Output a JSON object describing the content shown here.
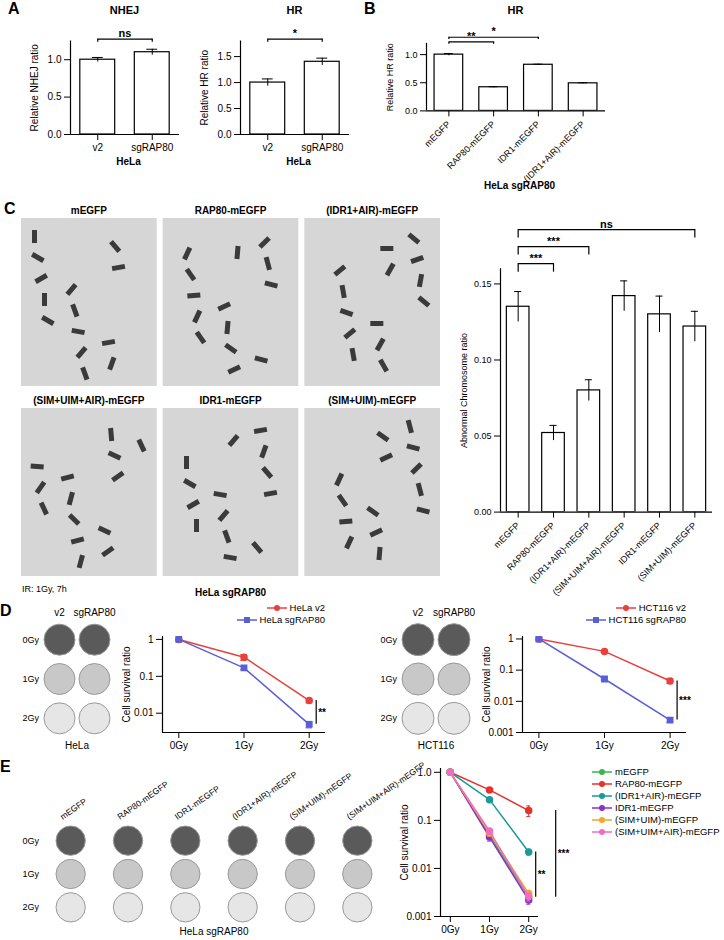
{
  "chart_data": [
    {
      "panel": "A",
      "type": "bar",
      "title": "NHEJ",
      "x_label": "HeLa",
      "y_label": "Relative NHEJ ratio",
      "categories": [
        "v2",
        "sgRAP80"
      ],
      "values": [
        1.0,
        1.1
      ],
      "errors": [
        0.03,
        0.04
      ],
      "color": "#ffffff",
      "ylim": [
        0,
        1.25
      ],
      "yticks": [
        {
          "value": 0,
          "label": "0.0"
        },
        {
          "value": 0.5,
          "label": "0.5"
        },
        {
          "value": 1,
          "label": "1.0"
        }
      ],
      "significance": [
        {
          "from": "v2",
          "to": "sgRAP80",
          "label": "ns"
        }
      ]
    },
    {
      "type": "bar",
      "title": "HR",
      "x_label": "HeLa",
      "y_label": "Relative HR ratio",
      "categories": [
        "v2",
        "sgRAP80"
      ],
      "values": [
        1.0,
        1.4
      ],
      "errors": [
        0.07,
        0.07
      ],
      "color": "#ffffff",
      "ylim": [
        0,
        1.8
      ],
      "yticks": [
        {
          "value": 0,
          "label": "0.0"
        },
        {
          "value": 0.5,
          "label": "0.5"
        },
        {
          "value": 1,
          "label": "1.0"
        },
        {
          "value": 1.5,
          "label": "1.5"
        }
      ],
      "significance": [
        {
          "from": "v2",
          "to": "sgRAP80",
          "label": "*"
        }
      ]
    },
    {
      "panel": "B",
      "type": "bar",
      "title": "HR",
      "x_label": "HeLa sgRAP80",
      "y_label": "Relative HR ratio",
      "categories": [
        "mEGFP",
        "RAP80-mEGFP",
        "IDR1-mEGFP",
        "(IDR1+AIR)-mEGFP"
      ],
      "values": [
        1.0,
        0.42,
        0.82,
        0.49
      ],
      "errors": [
        0.02,
        0.01,
        0.01,
        0.01
      ],
      "color": "#ffffff",
      "ylim": [
        0,
        1.2
      ],
      "yticks": [
        {
          "value": 0,
          "label": "0.0"
        },
        {
          "value": 0.5,
          "label": "0.5"
        },
        {
          "value": 1,
          "label": "1.0"
        }
      ],
      "significance": [
        {
          "from": "mEGFP",
          "to": "RAP80-mEGFP",
          "label": "**"
        },
        {
          "from": "mEGFP",
          "to": "IDR1-mEGFP",
          "label": "*"
        }
      ]
    },
    {
      "type": "bar",
      "y_label": "Abnormal Chromosome ratio",
      "categories": [
        "mEGFP",
        "RAP80-mEGFP",
        "(IDR1+AIR)-mEGFP",
        "(SIM+UIM+AIR)-mEGFP",
        "IDR1-mEGFP",
        "(SIM+UIM)-mEGFP"
      ],
      "values": [
        0.135,
        0.052,
        0.08,
        0.142,
        0.13,
        0.122
      ],
      "errors": [
        0.01,
        0.005,
        0.007,
        0.01,
        0.012,
        0.01
      ],
      "color": "#ffffff",
      "ylim": [
        0,
        0.16
      ],
      "yticks": [
        {
          "value": 0,
          "label": "0.00"
        },
        {
          "value": 0.05,
          "label": "0.05"
        },
        {
          "value": 0.1,
          "label": "0.10"
        },
        {
          "value": 0.15,
          "label": "0.15"
        }
      ],
      "significance": [
        {
          "from": "mEGFP",
          "to": "RAP80-mEGFP",
          "label": "***"
        },
        {
          "from": "mEGFP",
          "to": "(IDR1+AIR)-mEGFP",
          "label": "***"
        },
        {
          "from": "mEGFP",
          "to": "(SIM+UIM)-mEGFP",
          "label": "ns"
        }
      ]
    },
    {
      "type": "line",
      "y_label": "Cell survival ratio",
      "log": "y",
      "legend": "top-right",
      "categories": [
        "0Gy",
        "1Gy",
        "2Gy"
      ],
      "ylim": [
        0.003,
        1.2
      ],
      "yticks": [
        0.01,
        0.1,
        1
      ],
      "series": [
        {
          "name": "HeLa v2",
          "color": "#e8413c",
          "marker": "circle",
          "values": [
            1,
            0.33,
            0.022
          ],
          "errors": [
            0,
            0.06,
            0.003
          ]
        },
        {
          "name": "HeLa sgRAP80",
          "color": "#5a5fd6",
          "marker": "square",
          "values": [
            1,
            0.17,
            0.005
          ],
          "errors": [
            0,
            0.02,
            0.001
          ]
        }
      ],
      "significance": [
        {
          "between": [
            "HeLa v2",
            "HeLa sgRAP80"
          ],
          "label": "**"
        }
      ]
    },
    {
      "type": "line",
      "y_label": "Cell survival ratio",
      "log": "y",
      "legend": "top-right",
      "categories": [
        "0Gy",
        "1Gy",
        "2Gy"
      ],
      "ylim": [
        0.001,
        1.2
      ],
      "yticks": [
        0.001,
        0.01,
        0.1,
        1
      ],
      "series": [
        {
          "name": "HCT116 v2",
          "color": "#e8413c",
          "marker": "circle",
          "values": [
            1,
            0.4,
            0.045
          ],
          "errors": [
            0,
            0.02,
            0.008
          ]
        },
        {
          "name": "HCT116 sgRAP80",
          "color": "#5a5fd6",
          "marker": "square",
          "values": [
            1,
            0.052,
            0.0025
          ],
          "errors": [
            0,
            0.004,
            0.0004
          ]
        }
      ],
      "significance": [
        {
          "between": [
            "HCT116 v2",
            "HCT116 sgRAP80"
          ],
          "label": "***"
        }
      ]
    },
    {
      "type": "line",
      "y_label": "Cell survival ratio",
      "log": "y",
      "legend": "right",
      "categories": [
        "0Gy",
        "1Gy",
        "2Gy"
      ],
      "ylim": [
        0.001,
        1.2
      ],
      "yticks": [
        0.001,
        0.01,
        0.1,
        {
          "value": 1,
          "label": "1.0"
        }
      ],
      "series": [
        {
          "name": "mEGFP",
          "color": "#3cb44b",
          "marker": "circle",
          "values": [
            1,
            0.05,
            0.0025
          ],
          "errors": [
            0,
            0.008,
            0.0005
          ]
        },
        {
          "name": "RAP80-mEGFP",
          "color": "#e6312e",
          "marker": "circle",
          "values": [
            1,
            0.43,
            0.16
          ],
          "errors": [
            0,
            0.05,
            0.04
          ]
        },
        {
          "name": "(IDR1+AIR)-mEGFP",
          "color": "#1a9a9a",
          "marker": "circle",
          "values": [
            1,
            0.27,
            0.022
          ],
          "errors": [
            0,
            0.02,
            0.003
          ]
        },
        {
          "name": "IDR1-mEGFP",
          "color": "#8b2fc9",
          "marker": "circle",
          "values": [
            1,
            0.045,
            0.0022
          ],
          "errors": [
            0,
            0.008,
            0.0004
          ]
        },
        {
          "name": "(SIM+UIM)-mEGFP",
          "color": "#f5a623",
          "marker": "circle",
          "values": [
            1,
            0.055,
            0.003
          ],
          "errors": [
            0,
            0.008,
            0.0005
          ]
        },
        {
          "name": "(SIM+UIM+AIR)-mEGFP",
          "color": "#f06ec2",
          "marker": "circle",
          "values": [
            1,
            0.06,
            0.0026
          ],
          "errors": [
            0,
            0.008,
            0.0005
          ]
        }
      ],
      "significance": [
        {
          "between": [
            "(IDR1+AIR)-mEGFP",
            "mEGFP"
          ],
          "label": "**"
        },
        {
          "between": [
            "RAP80-mEGFP",
            "mEGFP"
          ],
          "label": "***"
        }
      ]
    }
  ],
  "images": [
    {
      "panel": "C",
      "labels": [
        "mEGFP",
        "RAP80-mEGFP",
        "(IDR1+AIR)-mEGFP",
        "(SIM+UIM+AIR)-mEGFP",
        "IDR1-mEGFP",
        "(SIM+UIM)-mEGFP"
      ],
      "annotation": "IR: 1Gy, 7h",
      "caption": "HeLa sgRAP80"
    },
    {
      "panel": "D",
      "columns": [
        "v2",
        "sgRAP80"
      ],
      "rows": [
        "0Gy",
        "1Gy",
        "2Gy"
      ],
      "caption": "HeLa"
    },
    {
      "columns": [
        "v2",
        "sgRAP80"
      ],
      "rows": [
        "0Gy",
        "1Gy",
        "2Gy"
      ],
      "caption": "HCT116"
    },
    {
      "panel": "E",
      "columns": [
        "mEGFP",
        "RAP80-mEGFP",
        "IDR1-mEGFP",
        "(IDR1+AIR)-mEGFP",
        "(SIM+UIM)-mEGFP",
        "(SIM+UIM+AIR)-mEGFP"
      ],
      "rows": [
        "0Gy",
        "1Gy",
        "2Gy"
      ],
      "caption": "HeLa sgRAP80"
    }
  ]
}
